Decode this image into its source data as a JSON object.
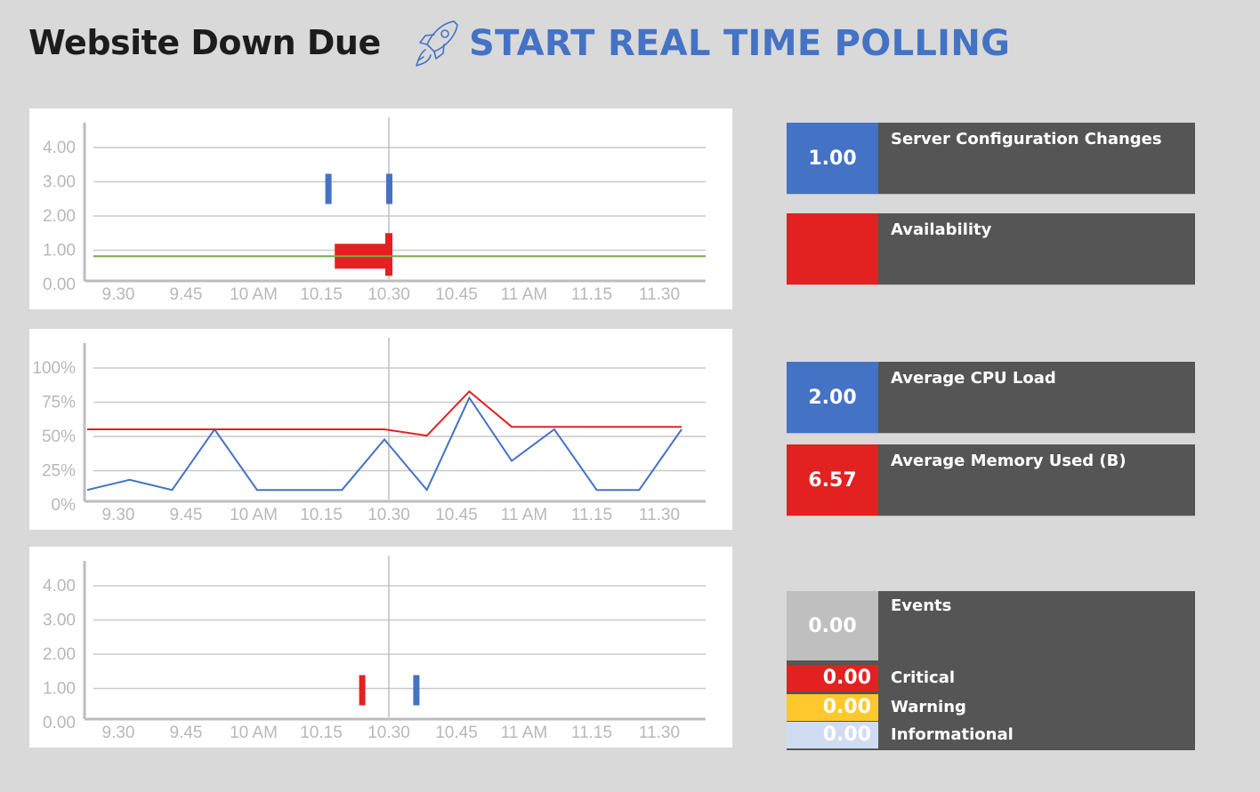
{
  "header": {
    "title": "Website Down Due",
    "polling_label": "START REAL TIME POLLING"
  },
  "icons": {
    "rocket": "rocket-icon"
  },
  "colors": {
    "blue": "#4472c4",
    "red": "#e32121",
    "green": "#70ad47",
    "yellow": "#ffc82c",
    "light_blue": "#cfdcf2",
    "gray": "#bfbfbf",
    "card_bg": "#555555"
  },
  "chart_data": [
    {
      "type": "bar",
      "x_ticks": [
        "9.30",
        "9.45",
        "10 AM",
        "10.15",
        "10.30",
        "10.45",
        "11 AM",
        "11.15",
        "11.30"
      ],
      "y_ticks": [
        "4.00",
        "3.00",
        "2.00",
        "1.00",
        "0.00"
      ],
      "ylim": [
        0,
        4
      ],
      "marker": "10.30",
      "series": [
        {
          "color": "#4472c4",
          "kind": "marks",
          "points": [
            {
              "x": 10.275,
              "y": 3
            },
            {
              "x": 10.5,
              "y": 3
            }
          ]
        },
        {
          "color": "#e32121",
          "kind": "block",
          "from": 10.3,
          "to": 10.5,
          "y": 0.5
        },
        {
          "color": "#70ad47",
          "kind": "baseline",
          "y": 0.5
        }
      ]
    },
    {
      "type": "line",
      "x_ticks": [
        "9.30",
        "9.45",
        "10 AM",
        "10.15",
        "10.30",
        "10.45",
        "11 AM",
        "11.15",
        "11.30"
      ],
      "y_ticks": [
        "100%",
        "75%",
        "50%",
        "25%",
        "0%"
      ],
      "ylim": [
        0,
        100
      ],
      "marker": "10.30",
      "series": [
        {
          "color": "#4472c4",
          "points": [
            2,
            10,
            2,
            50,
            2,
            2,
            2,
            42,
            2,
            75,
            25,
            50,
            2,
            2,
            50
          ]
        },
        {
          "color": "#e32121",
          "points": [
            50,
            50,
            50,
            50,
            50,
            50,
            50,
            50,
            45,
            80,
            52,
            52,
            52,
            52,
            52
          ]
        }
      ]
    },
    {
      "type": "bar",
      "x_ticks": [
        "9.30",
        "9.45",
        "10 AM",
        "10.15",
        "10.30",
        "10.45",
        "11 AM",
        "11.15",
        "11.30"
      ],
      "y_ticks": [
        "4.00",
        "3.00",
        "2.00",
        "1.00",
        "0.00"
      ],
      "ylim": [
        0,
        4
      ],
      "marker": "10.30",
      "series": [
        {
          "color": "#e32121",
          "kind": "marks",
          "points": [
            {
              "x": 10.4,
              "y": 1
            }
          ]
        },
        {
          "color": "#4472c4",
          "kind": "marks",
          "points": [
            {
              "x": 10.6,
              "y": 1
            }
          ]
        }
      ]
    }
  ],
  "metrics": {
    "config_changes": {
      "value": "1.00",
      "label": "Server Configuration Changes"
    },
    "availability": {
      "value": "",
      "label": "Availability"
    },
    "cpu_load": {
      "value": "2.00",
      "label": "Average CPU Load"
    },
    "memory_used": {
      "value": "6.57",
      "label": "Average Memory Used (B)"
    }
  },
  "events": {
    "value": "0.00",
    "label": "Events",
    "rows": [
      {
        "value": "0.00",
        "label": "Critical"
      },
      {
        "value": "0.00",
        "label": "Warning"
      },
      {
        "value": "0.00",
        "label": "Informational"
      }
    ]
  }
}
